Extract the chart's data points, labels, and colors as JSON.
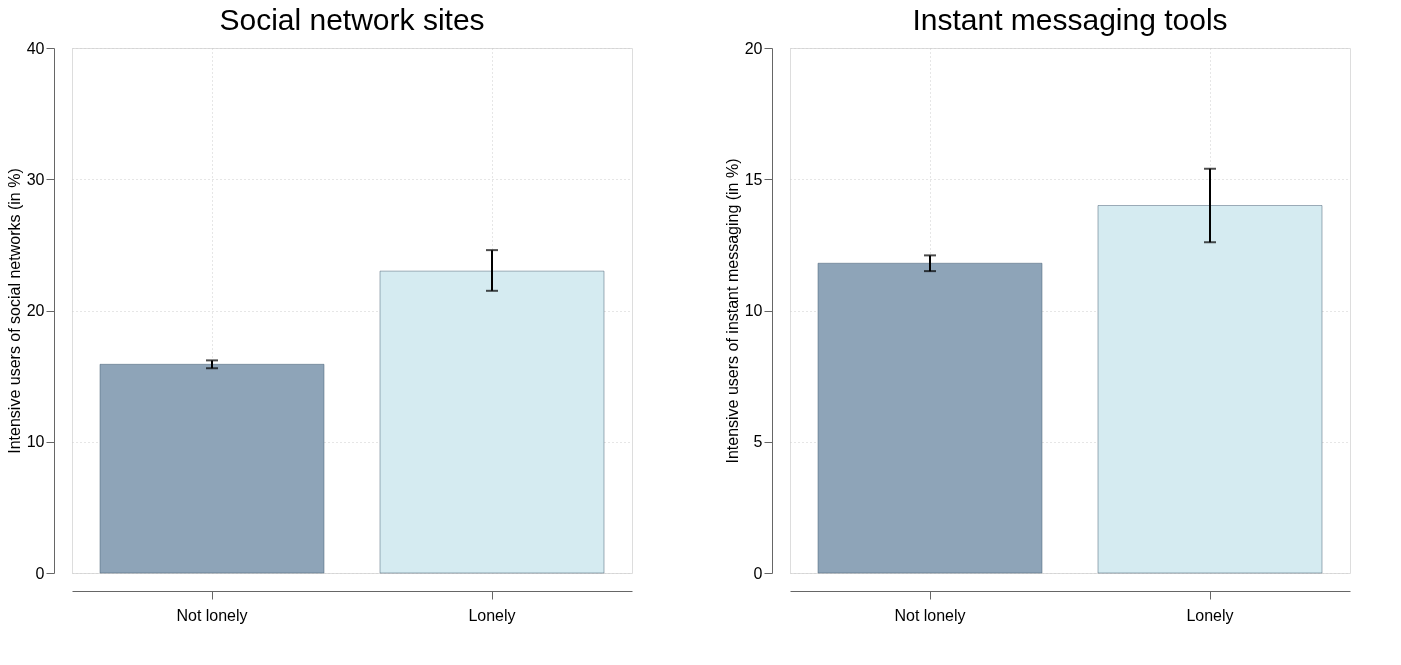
{
  "chart_data": [
    {
      "type": "bar",
      "title": "Social network sites",
      "ylabel": "Intensive users of social networks (in %)",
      "categories": [
        "Not lonely",
        "Lonely"
      ],
      "values": [
        15.9,
        23.0
      ],
      "colors": [
        "#8ea4b8",
        "#d5ebf1"
      ],
      "errors": [
        [
          15.6,
          16.2
        ],
        [
          21.5,
          24.6
        ]
      ],
      "ylim": [
        0,
        40
      ],
      "yticks": [
        0,
        10,
        20,
        30,
        40
      ],
      "grid": true
    },
    {
      "type": "bar",
      "title": "Instant messaging tools",
      "ylabel": "Intensive users of instant messaging (in %)",
      "categories": [
        "Not lonely",
        "Lonely"
      ],
      "values": [
        11.8,
        14.0
      ],
      "colors": [
        "#8ea4b8",
        "#d5ebf1"
      ],
      "errors": [
        [
          11.5,
          12.1
        ],
        [
          12.6,
          15.4
        ]
      ],
      "ylim": [
        0,
        20
      ],
      "yticks": [
        0,
        5,
        10,
        15,
        20
      ],
      "grid": true
    }
  ]
}
